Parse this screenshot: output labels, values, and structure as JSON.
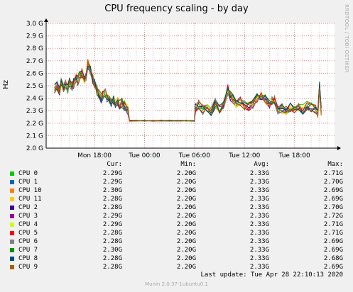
{
  "title": "CPU frequency scaling - by day",
  "side_text": "RRDTOOL / TOBI OETIKER",
  "footer": {
    "last_update": "Last update: Tue Apr 28 22:10:13 2020",
    "version": "Munin 2.0.37-1ubuntu0.1"
  },
  "table": {
    "headers": {
      "cur": "Cur:",
      "min": "Min:",
      "avg": "Avg:",
      "max": "Max:"
    },
    "rows": [
      {
        "name": "CPU 0",
        "color": "#00cc00",
        "cur": "2.29G",
        "min": "2.20G",
        "avg": "2.33G",
        "max": "2.71G"
      },
      {
        "name": "CPU 1",
        "color": "#0066b3",
        "cur": "2.29G",
        "min": "2.20G",
        "avg": "2.33G",
        "max": "2.70G"
      },
      {
        "name": "CPU 10",
        "color": "#ff8000",
        "cur": "2.30G",
        "min": "2.20G",
        "avg": "2.33G",
        "max": "2.69G"
      },
      {
        "name": "CPU 11",
        "color": "#ffcc00",
        "cur": "2.28G",
        "min": "2.20G",
        "avg": "2.33G",
        "max": "2.69G"
      },
      {
        "name": "CPU 2",
        "color": "#330099",
        "cur": "2.28G",
        "min": "2.20G",
        "avg": "2.33G",
        "max": "2.70G"
      },
      {
        "name": "CPU 3",
        "color": "#990099",
        "cur": "2.29G",
        "min": "2.20G",
        "avg": "2.33G",
        "max": "2.72G"
      },
      {
        "name": "CPU 4",
        "color": "#ccff00",
        "cur": "2.29G",
        "min": "2.20G",
        "avg": "2.33G",
        "max": "2.71G"
      },
      {
        "name": "CPU 5",
        "color": "#ff0000",
        "cur": "2.28G",
        "min": "2.20G",
        "avg": "2.33G",
        "max": "2.71G"
      },
      {
        "name": "CPU 6",
        "color": "#808080",
        "cur": "2.28G",
        "min": "2.20G",
        "avg": "2.33G",
        "max": "2.69G"
      },
      {
        "name": "CPU 7",
        "color": "#008f00",
        "cur": "2.30G",
        "min": "2.20G",
        "avg": "2.33G",
        "max": "2.69G"
      },
      {
        "name": "CPU 8",
        "color": "#00487d",
        "cur": "2.28G",
        "min": "2.20G",
        "avg": "2.33G",
        "max": "2.68G"
      },
      {
        "name": "CPU 9",
        "color": "#b35a00",
        "cur": "2.28G",
        "min": "2.20G",
        "avg": "2.33G",
        "max": "2.69G"
      }
    ]
  },
  "chart_data": {
    "type": "line",
    "title": "CPU frequency scaling - by day",
    "xlabel": "",
    "ylabel": "Hz",
    "ylim": [
      2.0,
      3.0
    ],
    "y_unit": "GHz",
    "grid": true,
    "y_ticks": [
      "2.0 G",
      "2.1 G",
      "2.2 G",
      "2.3 G",
      "2.4 G",
      "2.5 G",
      "2.6 G",
      "2.7 G",
      "2.8 G",
      "2.9 G",
      "3.0 G"
    ],
    "x_ticks": [
      "Mon 18:00",
      "Tue 00:00",
      "Tue 06:00",
      "Tue 12:00",
      "Tue 18:00"
    ],
    "x_tick_hours": [
      18,
      24,
      30,
      36,
      42
    ],
    "x_hours": [
      22.2,
      23.0,
      24.0,
      25.0,
      26.0,
      27.0,
      28.0,
      28.3,
      28.6,
      29.0,
      29.5,
      30.0,
      30.1,
      30.5,
      31.0,
      31.5,
      32.0,
      32.5,
      33.0,
      33.5,
      34.0,
      34.3,
      34.6,
      35.0,
      35.5,
      36.0,
      36.5,
      37.0,
      37.5,
      38.0,
      38.5,
      39.0,
      39.3,
      39.6,
      40.0,
      40.5,
      41.0,
      41.5,
      42.0,
      42.5,
      43.0,
      43.5,
      44.0,
      44.5,
      44.8,
      45.0,
      45.2,
      13.2,
      13.5,
      13.8,
      14.0,
      14.3,
      14.5,
      14.8,
      15.0,
      15.3,
      15.5,
      15.8,
      16.0,
      16.2,
      16.5,
      16.8,
      17.0,
      17.2,
      17.5,
      17.8,
      18.0,
      18.3,
      18.5,
      18.8,
      19.0,
      19.3,
      19.5,
      19.8,
      20.0,
      20.3,
      20.5,
      20.8,
      21.0,
      21.3,
      21.6,
      22.0
    ],
    "series": [
      {
        "name": "CPU 0",
        "values": [
          2.22,
          2.22,
          2.22,
          2.22,
          2.22,
          2.22,
          2.22,
          2.22,
          2.22,
          2.22,
          2.22,
          2.22,
          2.32,
          2.35,
          2.31,
          2.33,
          2.3,
          2.36,
          2.32,
          2.35,
          2.47,
          2.42,
          2.4,
          2.36,
          2.38,
          2.34,
          2.33,
          2.35,
          2.4,
          2.42,
          2.4,
          2.36,
          2.38,
          2.39,
          2.31,
          2.32,
          2.3,
          2.33,
          2.31,
          2.32,
          2.31,
          2.34,
          2.33,
          2.32,
          2.28,
          2.5,
          2.3,
          2.48,
          2.5,
          2.46,
          2.52,
          2.49,
          2.51,
          2.47,
          2.53,
          2.5,
          2.52,
          2.55,
          2.54,
          2.58,
          2.6,
          2.55,
          2.57,
          2.68,
          2.62,
          2.55,
          2.52,
          2.46,
          2.44,
          2.4,
          2.42,
          2.45,
          2.4,
          2.38,
          2.37,
          2.39,
          2.36,
          2.37,
          2.35,
          2.36,
          2.34,
          2.31
        ]
      }
    ],
    "series_note": "All 12 CPU series overlap closely; per-series statistics are given in the legend table."
  }
}
